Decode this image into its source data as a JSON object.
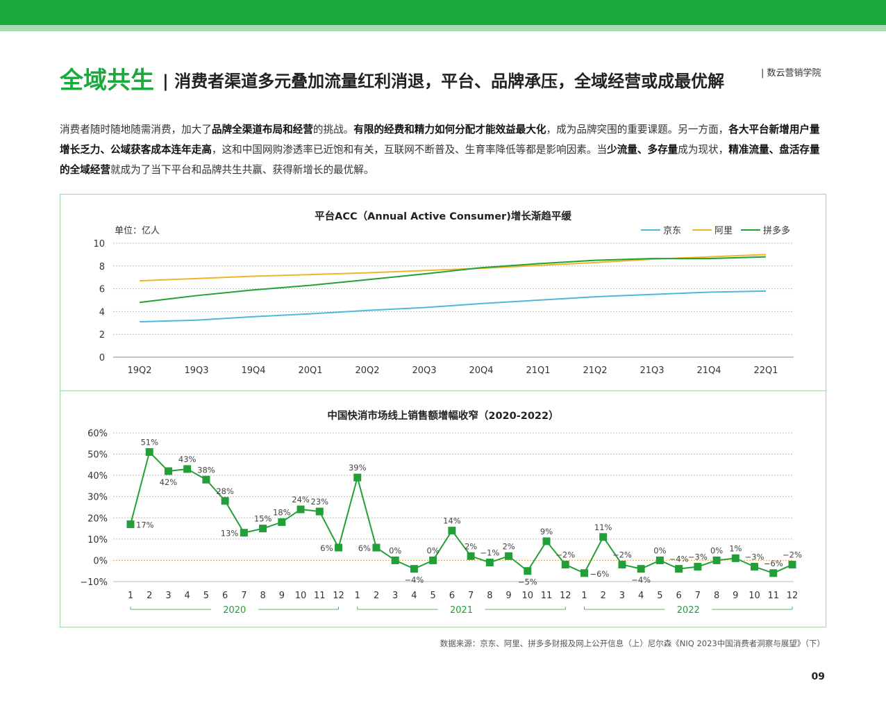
{
  "header": {
    "title": "全域共生",
    "subtitle": "| 消费者渠道多元叠加流量红利消退，平台、品牌承压，全域经营或成最优解",
    "brand": "| 数云营销学院"
  },
  "intro": {
    "segments": [
      {
        "text": "消费者随时随地随需消费，加大了",
        "bold": false
      },
      {
        "text": "品牌全渠道布局和经营",
        "bold": true
      },
      {
        "text": "的挑战。",
        "bold": false
      },
      {
        "text": "有限的经费和精力如何分配才能效益最大化",
        "bold": true
      },
      {
        "text": "，成为品牌突围的重要课题。另一方面，",
        "bold": false
      },
      {
        "text": "各大平台新增用户量增长乏力、公域获客成本连年走高",
        "bold": true
      },
      {
        "text": "，这和中国网购渗透率已近饱和有关，互联网不断普及、生育率降低等都是影响因素。当",
        "bold": false
      },
      {
        "text": "少流量、多存量",
        "bold": true
      },
      {
        "text": "成为现状，",
        "bold": false
      },
      {
        "text": "精准流量、盘活存量的全域经营",
        "bold": true
      },
      {
        "text": "就成为了当下平台和品牌共生共赢、获得新增长的最优解。",
        "bold": false
      }
    ]
  },
  "chart_data": [
    {
      "type": "line",
      "title": "平台ACC（Annual Active Consumer)增长渐趋平缓",
      "unit_label": "单位：亿人",
      "categories": [
        "19Q2",
        "19Q3",
        "19Q4",
        "20Q1",
        "20Q2",
        "20Q3",
        "20Q4",
        "21Q1",
        "21Q2",
        "21Q3",
        "21Q4",
        "22Q1"
      ],
      "ylim": [
        0,
        10
      ],
      "yticks": [
        0,
        2,
        4,
        6,
        8,
        10
      ],
      "grid": true,
      "legend_position": "top-right",
      "series": [
        {
          "name": "京东",
          "color": "#4db8d8",
          "values": [
            3.1,
            3.25,
            3.55,
            3.8,
            4.1,
            4.35,
            4.7,
            5.0,
            5.3,
            5.5,
            5.7,
            5.8
          ]
        },
        {
          "name": "阿里",
          "color": "#f0b429",
          "values": [
            6.7,
            6.9,
            7.1,
            7.25,
            7.4,
            7.6,
            7.8,
            8.05,
            8.3,
            8.6,
            8.8,
            9.0
          ]
        },
        {
          "name": "拼多多",
          "color": "#21a038",
          "values": [
            4.8,
            5.4,
            5.9,
            6.3,
            6.8,
            7.3,
            7.85,
            8.2,
            8.5,
            8.65,
            8.65,
            8.8
          ]
        }
      ]
    },
    {
      "type": "line",
      "title": "中国快消市场线上销售额增幅收窄（2020-2022）",
      "months": [
        "1",
        "2",
        "3",
        "4",
        "5",
        "6",
        "7",
        "8",
        "9",
        "10",
        "11",
        "12",
        "1",
        "2",
        "3",
        "4",
        "5",
        "6",
        "7",
        "8",
        "9",
        "10",
        "11",
        "12",
        "1",
        "2",
        "3",
        "4",
        "5",
        "6",
        "7",
        "8",
        "9",
        "10",
        "11",
        "12"
      ],
      "year_groups": [
        {
          "label": "2020",
          "start": 0,
          "end": 11
        },
        {
          "label": "2021",
          "start": 12,
          "end": 23
        },
        {
          "label": "2022",
          "start": 24,
          "end": 35
        }
      ],
      "ylim": [
        -10,
        60
      ],
      "yticks": [
        -10,
        0,
        10,
        20,
        30,
        40,
        50,
        60
      ],
      "ytick_labels": [
        "−10%",
        "0%",
        "10%",
        "20%",
        "30%",
        "40%",
        "50%",
        "60%"
      ],
      "grid": true,
      "series": [
        {
          "name": "",
          "color": "#21a038",
          "values": [
            17,
            51,
            42,
            43,
            38,
            28,
            13,
            15,
            18,
            24,
            23,
            6,
            39,
            6,
            0,
            -4,
            0,
            14,
            2,
            -1,
            2,
            -5,
            9,
            -2,
            -6,
            11,
            -2,
            -4,
            0,
            -4,
            -3,
            0,
            1,
            -3,
            -6,
            -2
          ],
          "labels": [
            "17%",
            "51%",
            "42%",
            "43%",
            "38%",
            "28%",
            "13%",
            "15%",
            "18%",
            "24%",
            "23%",
            "6%",
            "39%",
            "6%",
            "0%",
            "−4%",
            "0%",
            "14%",
            "2%",
            "−1%",
            "2%",
            "−5%",
            "9%",
            "−2%",
            "−6%",
            "11%",
            "−2%",
            "−4%",
            "0%",
            "−4%",
            "−3%",
            "0%",
            "1%",
            "−3%",
            "−6%",
            "−2%"
          ],
          "label_pos": [
            "r",
            "t",
            "b",
            "t",
            "t",
            "t",
            "l",
            "t",
            "t",
            "t",
            "t",
            "l",
            "t",
            "l",
            "t",
            "b",
            "t",
            "t",
            "t",
            "t",
            "t",
            "b",
            "t",
            "t",
            "r",
            "t",
            "t",
            "b",
            "t",
            "t",
            "t",
            "t",
            "t",
            "t",
            "t",
            "t"
          ]
        }
      ]
    }
  ],
  "footer": {
    "source": "数据来源：京东、阿里、拼多多财报及网上公开信息（上）尼尔森《NIQ 2023中国消费者洞察与展望》（下）",
    "page_number": "09"
  }
}
